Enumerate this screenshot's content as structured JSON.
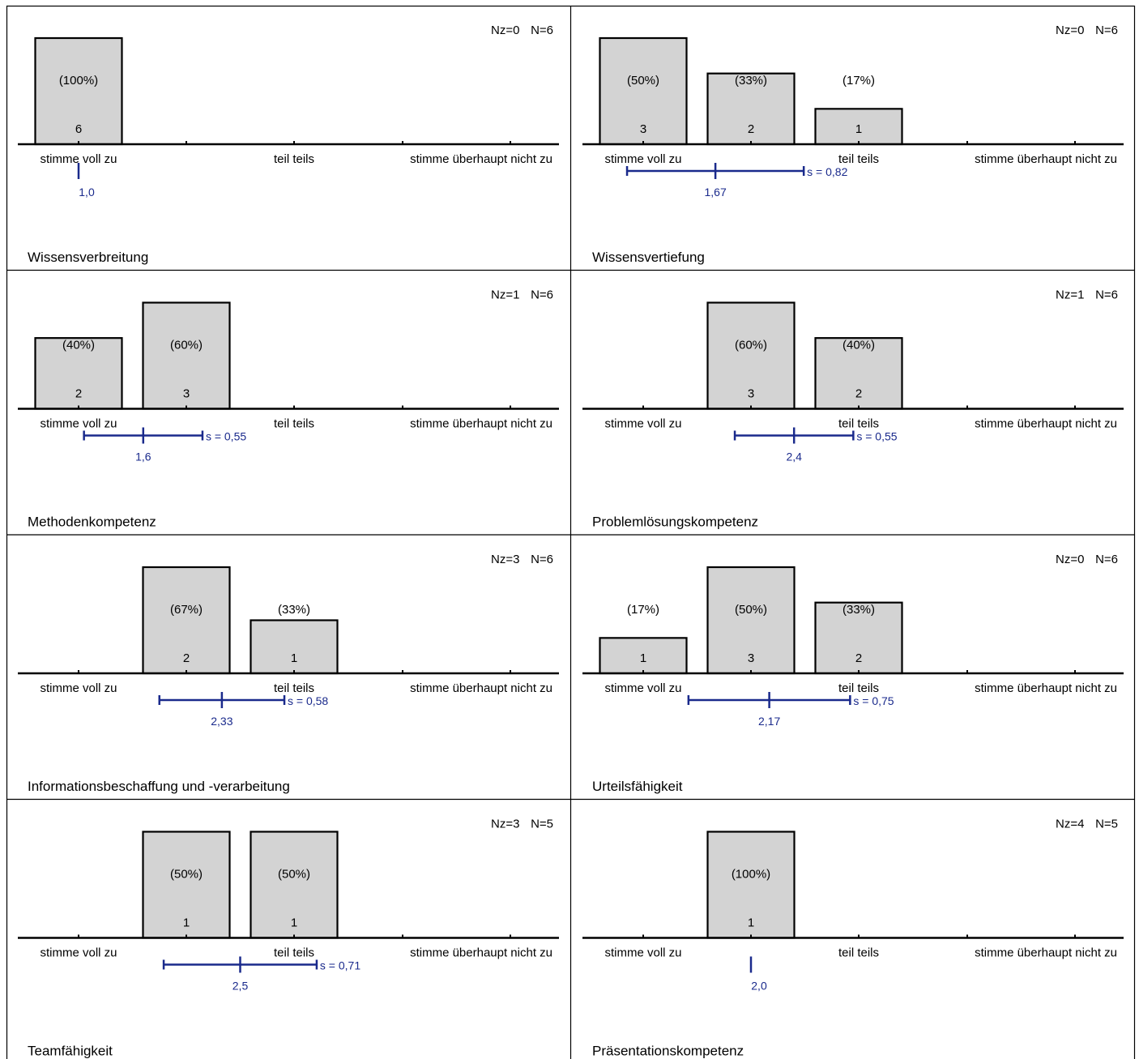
{
  "colors": {
    "bar_fill": "#d3d3d3",
    "bar_stroke": "#000000",
    "stat_color": "#1a2a8c",
    "text": "#000000"
  },
  "chart_data": [
    {
      "type": "bar",
      "title": "Wissensverbreitung",
      "nz": "Nz=0",
      "n": "N=6",
      "tick_labels": [
        "stimme voll zu",
        "",
        "teil teils",
        "",
        "stimme überhaupt nicht zu"
      ],
      "counts": [
        6,
        0,
        0,
        0,
        0
      ],
      "percents": [
        "(100%)",
        "",
        "",
        "",
        ""
      ],
      "mean": 1.0,
      "mean_label": "1,0",
      "sd": 0,
      "sd_label": ""
    },
    {
      "type": "bar",
      "title": "Wissensvertiefung",
      "nz": "Nz=0",
      "n": "N=6",
      "tick_labels": [
        "stimme voll zu",
        "",
        "teil teils",
        "",
        "stimme überhaupt nicht zu"
      ],
      "counts": [
        3,
        2,
        1,
        0,
        0
      ],
      "percents": [
        "(50%)",
        "(33%)",
        "(17%)",
        "",
        ""
      ],
      "mean": 1.67,
      "mean_label": "1,67",
      "sd": 0.82,
      "sd_label": "s = 0,82"
    },
    {
      "type": "bar",
      "title": "Methodenkompetenz",
      "nz": "Nz=1",
      "n": "N=6",
      "tick_labels": [
        "stimme voll zu",
        "",
        "teil teils",
        "",
        "stimme überhaupt nicht zu"
      ],
      "counts": [
        2,
        3,
        0,
        0,
        0
      ],
      "percents": [
        "(40%)",
        "(60%)",
        "",
        "",
        ""
      ],
      "mean": 1.6,
      "mean_label": "1,6",
      "sd": 0.55,
      "sd_label": "s = 0,55"
    },
    {
      "type": "bar",
      "title": "Problemlösungskompetenz",
      "nz": "Nz=1",
      "n": "N=6",
      "tick_labels": [
        "stimme voll zu",
        "",
        "teil teils",
        "",
        "stimme überhaupt nicht zu"
      ],
      "counts": [
        0,
        3,
        2,
        0,
        0
      ],
      "percents": [
        "",
        "(60%)",
        "(40%)",
        "",
        ""
      ],
      "mean": 2.4,
      "mean_label": "2,4",
      "sd": 0.55,
      "sd_label": "s = 0,55"
    },
    {
      "type": "bar",
      "title": "Informationsbeschaffung und -verarbeitung",
      "nz": "Nz=3",
      "n": "N=6",
      "tick_labels": [
        "stimme voll zu",
        "",
        "teil teils",
        "",
        "stimme überhaupt nicht zu"
      ],
      "counts": [
        0,
        2,
        1,
        0,
        0
      ],
      "percents": [
        "",
        "(67%)",
        "(33%)",
        "",
        ""
      ],
      "mean": 2.33,
      "mean_label": "2,33",
      "sd": 0.58,
      "sd_label": "s = 0,58"
    },
    {
      "type": "bar",
      "title": "Urteilsfähigkeit",
      "nz": "Nz=0",
      "n": "N=6",
      "tick_labels": [
        "stimme voll zu",
        "",
        "teil teils",
        "",
        "stimme überhaupt nicht zu"
      ],
      "counts": [
        1,
        3,
        2,
        0,
        0
      ],
      "percents": [
        "(17%)",
        "(50%)",
        "(33%)",
        "",
        ""
      ],
      "mean": 2.17,
      "mean_label": "2,17",
      "sd": 0.75,
      "sd_label": "s = 0,75"
    },
    {
      "type": "bar",
      "title": "Teamfähigkeit",
      "nz": "Nz=3",
      "n": "N=5",
      "tick_labels": [
        "stimme voll zu",
        "",
        "teil teils",
        "",
        "stimme überhaupt nicht zu"
      ],
      "counts": [
        0,
        1,
        1,
        0,
        0
      ],
      "percents": [
        "",
        "(50%)",
        "(50%)",
        "",
        ""
      ],
      "mean": 2.5,
      "mean_label": "2,5",
      "sd": 0.71,
      "sd_label": "s = 0,71"
    },
    {
      "type": "bar",
      "title": "Präsentationskompetenz",
      "nz": "Nz=4",
      "n": "N=5",
      "tick_labels": [
        "stimme voll zu",
        "",
        "teil teils",
        "",
        "stimme überhaupt nicht zu"
      ],
      "counts": [
        0,
        1,
        0,
        0,
        0
      ],
      "percents": [
        "",
        "(100%)",
        "",
        "",
        ""
      ],
      "mean": 2.0,
      "mean_label": "2,0",
      "sd": 0,
      "sd_label": ""
    }
  ]
}
